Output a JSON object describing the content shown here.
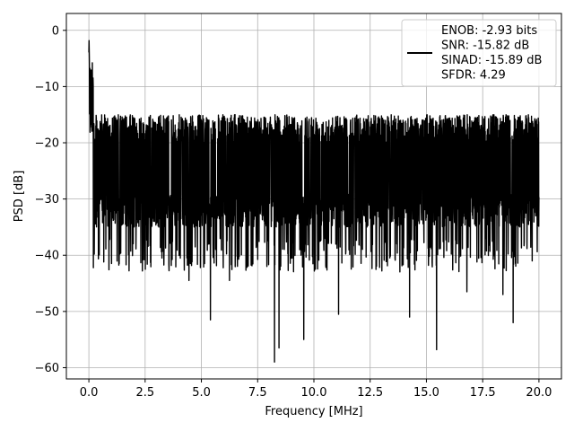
{
  "chart_data": {
    "type": "line",
    "title": "",
    "xlabel": "Frequency [MHz]",
    "ylabel": "PSD [dB]",
    "xlim": [
      -1.0,
      21.0
    ],
    "ylim": [
      -62.0,
      3.0
    ],
    "xticks": [
      0.0,
      2.5,
      5.0,
      7.5,
      10.0,
      12.5,
      15.0,
      17.5,
      20.0
    ],
    "xtick_labels": [
      "0.0",
      "2.5",
      "5.0",
      "7.5",
      "10.0",
      "12.5",
      "15.0",
      "17.5",
      "20.0"
    ],
    "yticks": [
      0,
      -10,
      -20,
      -30,
      -40,
      -50,
      -60
    ],
    "ytick_labels": [
      "0",
      "−10",
      "−20",
      "−30",
      "−40",
      "−50",
      "−60"
    ],
    "grid": true,
    "legend_position": "top-right",
    "legend_lines": [
      "ENOB: -2.93 bits",
      "SNR: -15.82 dB",
      "SINAD: -15.89 dB",
      "SFDR: 4.29"
    ],
    "series": [
      {
        "color": "#000000",
        "x_range": [
          0.0,
          20.0
        ],
        "peak": {
          "x": 0.0,
          "y": 0.0
        },
        "noise_floor_range": [
          -35.0,
          -15.0
        ],
        "deep_dips": [
          {
            "x": 1.35,
            "y": -41.5
          },
          {
            "x": 3.25,
            "y": -40.5
          },
          {
            "x": 4.45,
            "y": -44.5
          },
          {
            "x": 5.4,
            "y": -51.5
          },
          {
            "x": 6.25,
            "y": -44.5
          },
          {
            "x": 8.25,
            "y": -59.0
          },
          {
            "x": 8.45,
            "y": -56.5
          },
          {
            "x": 9.55,
            "y": -55.0
          },
          {
            "x": 11.1,
            "y": -50.5
          },
          {
            "x": 14.25,
            "y": -51.0
          },
          {
            "x": 15.45,
            "y": -56.8
          },
          {
            "x": 16.8,
            "y": -46.5
          },
          {
            "x": 18.4,
            "y": -47.0
          },
          {
            "x": 18.85,
            "y": -52.0
          }
        ]
      }
    ]
  }
}
